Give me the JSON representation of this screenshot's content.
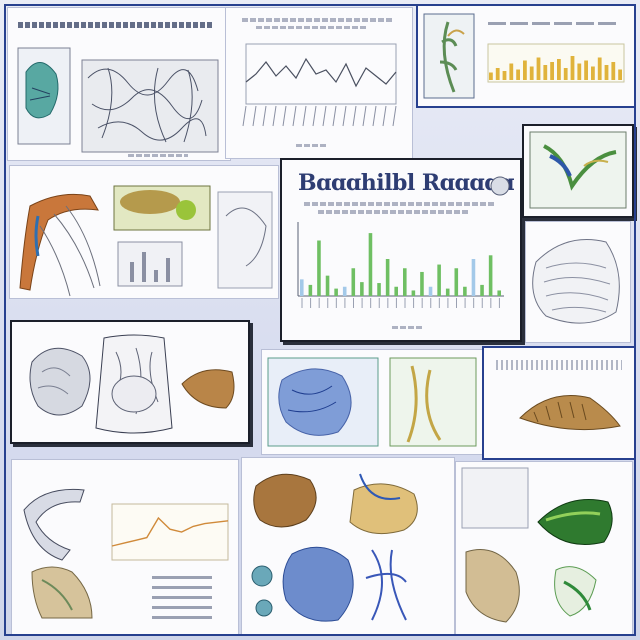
{
  "canvas": {
    "background": "#dfe3f1",
    "frame_color": "#27408f"
  },
  "main_chart": {
    "chart_data": {
      "type": "bar",
      "title": "",
      "categories": [
        "",
        "",
        "",
        "",
        "",
        "",
        "",
        "",
        "",
        "",
        "",
        "",
        "",
        "",
        "",
        "",
        "",
        "",
        "",
        "",
        "",
        "",
        "",
        ""
      ],
      "series": [
        {
          "values": [
            18,
            12,
            60,
            22,
            8,
            10,
            30,
            15,
            68,
            14,
            40,
            10,
            30,
            6,
            26,
            10,
            34,
            8,
            30,
            10,
            40,
            12,
            44,
            6
          ]
        }
      ],
      "ylim": [
        0,
        80
      ],
      "colors": [
        "#6fbf63",
        "#2e6bb8",
        "#a3c9e9"
      ]
    }
  },
  "line_chart": {
    "chart_data": {
      "type": "line",
      "x": [
        1,
        2,
        3,
        4,
        5,
        6,
        7,
        8,
        9,
        10,
        11,
        12,
        13,
        14,
        15,
        16
      ],
      "series": [
        {
          "values": [
            22,
            30,
            42,
            28,
            38,
            26,
            45,
            30,
            34,
            22,
            40,
            18,
            36,
            28,
            20,
            32
          ]
        }
      ],
      "ylim": [
        0,
        60
      ]
    }
  },
  "top_right_chart": {
    "chart_data": {
      "type": "bar",
      "x": [
        1,
        2,
        3,
        4,
        5,
        6,
        7,
        8,
        9,
        10,
        11,
        12,
        13,
        14,
        15,
        16,
        17,
        18,
        19,
        20
      ],
      "series": [
        {
          "values": [
            10,
            16,
            12,
            22,
            14,
            26,
            18,
            30,
            20,
            24,
            28,
            16,
            32,
            22,
            26,
            18,
            30,
            20,
            24,
            14
          ]
        }
      ],
      "ylim": [
        0,
        40
      ]
    }
  },
  "curve_chart": {
    "chart_data": {
      "type": "line",
      "x": [
        0,
        1,
        2,
        3,
        4,
        5,
        6,
        7,
        8,
        9,
        10
      ],
      "series": [
        {
          "values": [
            10,
            12,
            14,
            16,
            30,
            22,
            20,
            24,
            26,
            27,
            28
          ]
        }
      ],
      "ylim": [
        0,
        40
      ]
    }
  },
  "icons": [
    "anatomy-illustration-icon",
    "specimen-icon",
    "vein-network-icon",
    "logo-seal-icon"
  ]
}
